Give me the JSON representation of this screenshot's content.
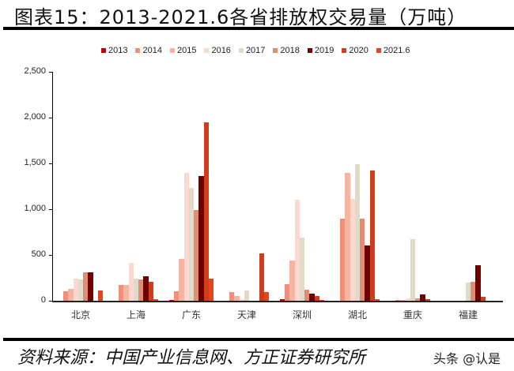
{
  "header": {
    "title": "图表15：2013-2021.6各省排放权交易量（万吨）"
  },
  "footer": {
    "source": "资料来源：中国产业信息网、方正证券研究所",
    "watermark": "头条 @认是"
  },
  "chart_data": {
    "type": "bar",
    "title": "2013-2021.6各省排放权交易量（万吨）",
    "xlabel": "",
    "ylabel": "",
    "ylim": [
      0,
      2500
    ],
    "yticks": [
      0,
      500,
      1000,
      1500,
      2000,
      2500
    ],
    "ytick_labels": [
      "0",
      "500",
      "1,000",
      "1,500",
      "2,000",
      "2,500"
    ],
    "grid": false,
    "legend_position": "top",
    "categories": [
      "北京",
      "上海",
      "广东",
      "天津",
      "深圳",
      "湖北",
      "重庆",
      "福建"
    ],
    "series": [
      {
        "name": "2013",
        "color": "#c00000",
        "values": [
          0,
          0,
          10,
          0,
          15,
          0,
          0,
          0
        ]
      },
      {
        "name": "2014",
        "color": "#f0907a",
        "values": [
          100,
          170,
          100,
          95,
          180,
          900,
          5,
          0
        ]
      },
      {
        "name": "2015",
        "color": "#f5b5a0",
        "values": [
          130,
          170,
          460,
          55,
          440,
          1400,
          10,
          0
        ]
      },
      {
        "name": "2016",
        "color": "#fbd9d0",
        "values": [
          240,
          415,
          1400,
          20,
          1100,
          1110,
          30,
          0
        ]
      },
      {
        "name": "2017",
        "color": "#dfdbc8",
        "values": [
          235,
          245,
          1235,
          110,
          690,
          1490,
          670,
          200
        ]
      },
      {
        "name": "2018",
        "color": "#e48b74",
        "values": [
          310,
          235,
          990,
          0,
          120,
          895,
          25,
          210
        ]
      },
      {
        "name": "2019",
        "color": "#6e0000",
        "values": [
          310,
          270,
          1360,
          0,
          75,
          600,
          65,
          385
        ]
      },
      {
        "name": "2020",
        "color": "#cf3d1c",
        "values": [
          0,
          210,
          1950,
          515,
          50,
          1420,
          20,
          40
        ]
      },
      {
        "name": "2021.6",
        "color": "#e2481f",
        "values": [
          110,
          20,
          240,
          95,
          10,
          20,
          0,
          0
        ]
      }
    ]
  }
}
